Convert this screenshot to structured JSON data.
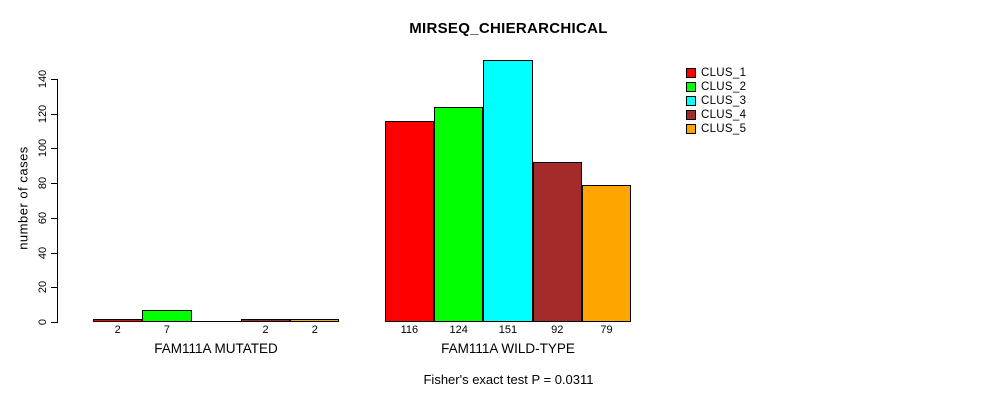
{
  "chart_data": {
    "type": "bar",
    "title": "MIRSEQ_CHIERARCHICAL",
    "ylabel": "number of cases",
    "xlabel": "",
    "annotation": "Fisher's exact test P = 0.0311",
    "groups": [
      "FAM111A MUTATED",
      "FAM111A WILD-TYPE"
    ],
    "series": [
      {
        "name": "CLUS_1",
        "color": "#FF0000",
        "values": [
          2,
          116
        ]
      },
      {
        "name": "CLUS_2",
        "color": "#00FF00",
        "values": [
          7,
          124
        ]
      },
      {
        "name": "CLUS_3",
        "color": "#00FFFF",
        "values": [
          0,
          151
        ]
      },
      {
        "name": "CLUS_4",
        "color": "#A52A2A",
        "values": [
          2,
          92
        ]
      },
      {
        "name": "CLUS_5",
        "color": "#FFA500",
        "values": [
          2,
          79
        ]
      }
    ],
    "bar_labels": [
      [
        "2",
        "7",
        null,
        "2",
        "2"
      ],
      [
        "116",
        "124",
        "151",
        "92",
        "79"
      ]
    ],
    "ylim": [
      0,
      151
    ],
    "yticks": [
      0,
      20,
      40,
      60,
      80,
      100,
      120,
      140
    ],
    "legend_position": "top-right",
    "legend_entries": [
      "CLUS_1",
      "CLUS_2",
      "CLUS_3",
      "CLUS_4",
      "CLUS_5"
    ],
    "grid": false
  }
}
